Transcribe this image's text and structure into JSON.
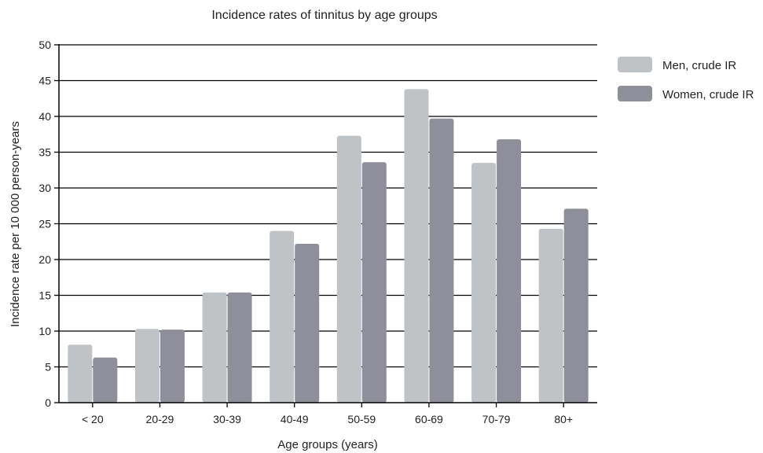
{
  "chart_data": {
    "type": "bar",
    "title": "Incidence rates of tinnitus by age groups",
    "xlabel": "Age groups (years)",
    "ylabel": "Incidence rate per 10 000 person-years",
    "categories": [
      "< 20",
      "20-29",
      "30-39",
      "40-49",
      "50-59",
      "60-69",
      "70-79",
      "80+"
    ],
    "series": [
      {
        "name": "Men, crude IR",
        "color": "#c0c3c6",
        "values": [
          8.1,
          10.3,
          15.4,
          24.0,
          37.3,
          43.8,
          33.5,
          24.3
        ]
      },
      {
        "name": "Women, crude IR",
        "color": "#8e8f9b",
        "values": [
          6.3,
          10.2,
          15.4,
          22.2,
          33.6,
          39.7,
          36.8,
          27.1
        ]
      }
    ],
    "ylim": [
      0,
      50
    ],
    "yticks": [
      0,
      5,
      10,
      15,
      20,
      25,
      30,
      35,
      40,
      45,
      50
    ],
    "grid": true,
    "legend_position": "top-right"
  }
}
